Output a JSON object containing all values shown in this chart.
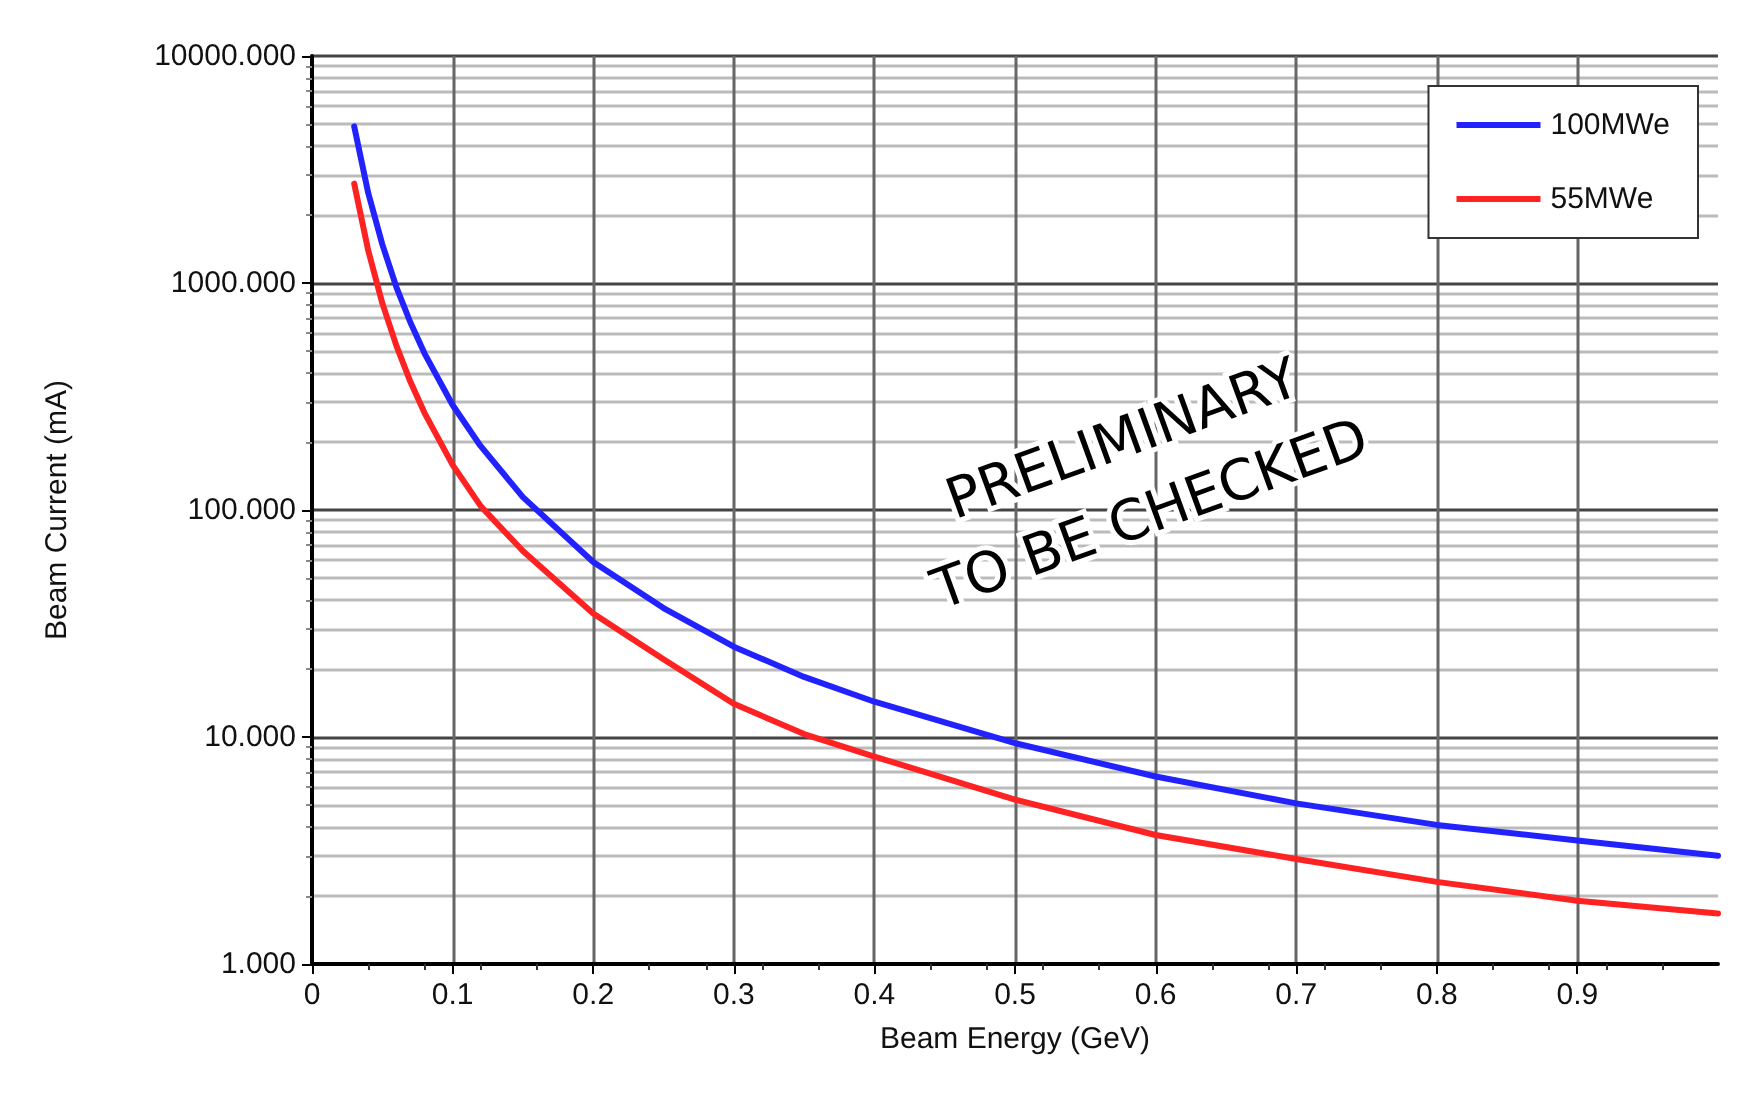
{
  "chart_data": {
    "type": "line",
    "xlabel": "Beam Energy (GeV)",
    "ylabel": "Beam Current (mA)",
    "x": [
      0.03,
      0.04,
      0.05,
      0.06,
      0.07,
      0.08,
      0.1,
      0.12,
      0.15,
      0.2,
      0.25,
      0.3,
      0.35,
      0.4,
      0.5,
      0.6,
      0.7,
      0.8,
      0.9,
      1.0
    ],
    "series": [
      {
        "name": "100MWe",
        "color": "#2222ff",
        "values": [
          4900,
          2490,
          1480,
          960,
          670,
          490,
          290,
          191,
          114,
          59,
          37,
          25,
          18.4,
          14.3,
          9.4,
          6.7,
          5.1,
          4.1,
          3.5,
          3.0
        ]
      },
      {
        "name": "55MWe",
        "color": "#ff2222",
        "values": [
          2740,
          1390,
          815,
          530,
          367,
          268,
          158,
          104,
          66,
          35,
          22,
          14,
          10.3,
          8.2,
          5.3,
          3.7,
          2.9,
          2.3,
          1.9,
          1.67
        ]
      }
    ],
    "xlim": [
      0,
      1
    ],
    "xticks": [
      0,
      0.1,
      0.2,
      0.3,
      0.4,
      0.5,
      0.6,
      0.7,
      0.8,
      0.9
    ],
    "ylim": [
      1,
      10000
    ],
    "yticks": [
      {
        "value": 1,
        "label": "1.000"
      },
      {
        "value": 10,
        "label": "10.000"
      },
      {
        "value": 100,
        "label": "100.000"
      },
      {
        "value": 1000,
        "label": "1000.000"
      },
      {
        "value": 10000,
        "label": "10000.000"
      }
    ],
    "log": "y",
    "grid": true,
    "legend": "top right",
    "marker": "none",
    "line_style": "solid",
    "annotations": [
      "PRELIMINARY\nTO BE CHECKED"
    ]
  }
}
